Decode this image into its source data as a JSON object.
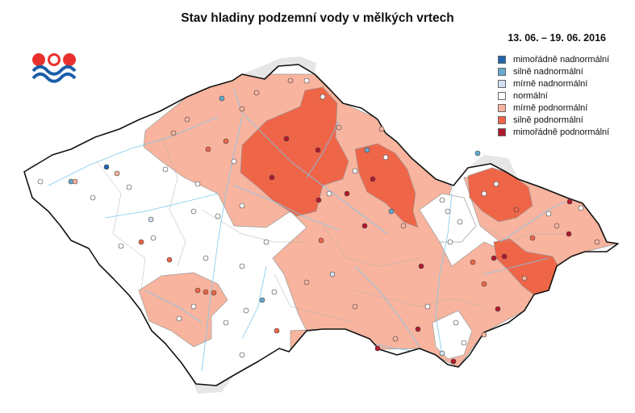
{
  "title": "Stav hladiny podzemní vody v mělkých vrtech",
  "period": "13. 06. – 19. 06. 2016",
  "logo": {
    "icon": "chmi-logo-icon",
    "colors": [
      "#e8312f",
      "#1a5ea8"
    ]
  },
  "legend": [
    {
      "key": "mimoradne_nad",
      "label": "mimořádně nadnormální",
      "color": "#2166ac"
    },
    {
      "key": "silne_nad",
      "label": "silně nadnormální",
      "color": "#67a9cf"
    },
    {
      "key": "mirne_nad",
      "label": "mírně nadnormální",
      "color": "#d1e0f0"
    },
    {
      "key": "normalni",
      "label": "normální",
      "color": "#ffffff"
    },
    {
      "key": "mirne_pod",
      "label": "mírně podnormální",
      "color": "#f8b49e"
    },
    {
      "key": "silne_pod",
      "label": "silně podnormální",
      "color": "#ef6548"
    },
    {
      "key": "mimoradne_pod",
      "label": "mimořádně podnormální",
      "color": "#b2182b"
    }
  ],
  "map_colors": {
    "background": "#ffffff",
    "neighbour": "#e6e6e6",
    "border": "#111111",
    "district": "#999999",
    "river": "#7fc8ef"
  }
}
